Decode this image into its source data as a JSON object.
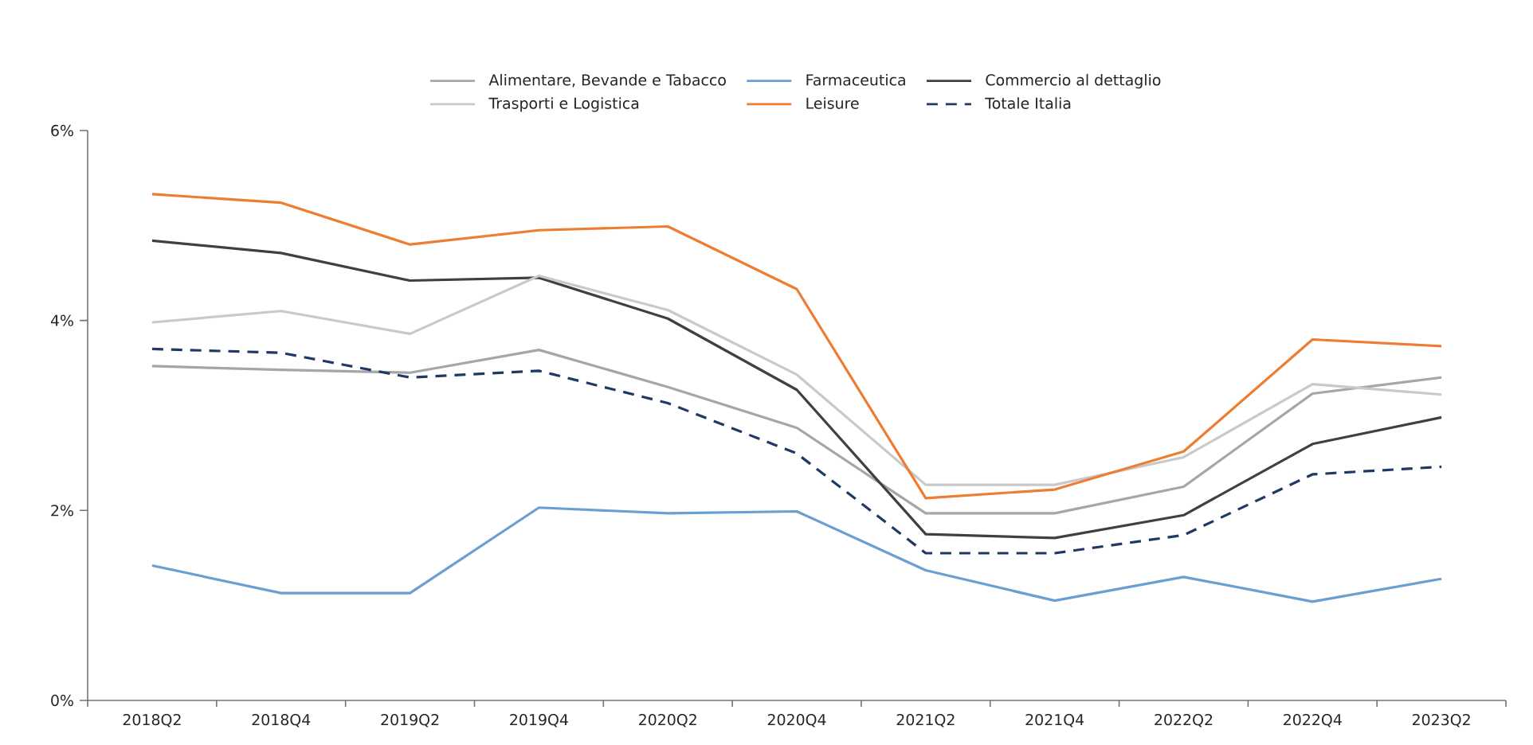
{
  "chart_data": {
    "type": "line",
    "categories": [
      "2018Q2",
      "2018Q4",
      "2019Q2",
      "2019Q4",
      "2020Q2",
      "2020Q4",
      "2021Q2",
      "2021Q4",
      "2022Q2",
      "2022Q4",
      "2023Q2"
    ],
    "series": [
      {
        "name": "Alimentare, Bevande e Tabacco",
        "color": "#a6a6a6",
        "line_style": "solid",
        "values": [
          3.52,
          3.48,
          3.45,
          3.69,
          3.3,
          2.87,
          1.97,
          1.97,
          2.25,
          3.23,
          3.4
        ]
      },
      {
        "name": "Farmaceutica",
        "color": "#6a9fd2",
        "line_style": "solid",
        "values": [
          1.42,
          1.13,
          1.13,
          2.03,
          1.97,
          1.99,
          1.37,
          1.05,
          1.3,
          1.04,
          1.28
        ]
      },
      {
        "name": "Commercio al dettaglio",
        "color": "#404040",
        "line_style": "solid",
        "values": [
          4.84,
          4.71,
          4.42,
          4.45,
          4.02,
          3.27,
          1.75,
          1.71,
          1.95,
          2.7,
          2.98
        ]
      },
      {
        "name": "Trasporti e Logistica",
        "color": "#c9c9c9",
        "line_style": "solid",
        "values": [
          3.98,
          4.1,
          3.86,
          4.47,
          4.11,
          3.43,
          2.27,
          2.27,
          2.56,
          3.33,
          3.22
        ]
      },
      {
        "name": "Leisure",
        "color": "#ed7d31",
        "line_style": "solid",
        "values": [
          5.33,
          5.24,
          4.8,
          4.95,
          4.99,
          4.33,
          2.13,
          2.22,
          2.62,
          3.8,
          3.73
        ]
      },
      {
        "name": "Totale Italia",
        "color": "#1f3864",
        "line_style": "dashed",
        "values": [
          3.7,
          3.66,
          3.4,
          3.47,
          3.13,
          2.6,
          1.55,
          1.55,
          1.74,
          2.38,
          2.46
        ]
      }
    ],
    "ylim": [
      0,
      6
    ],
    "yticks": [
      {
        "value": 0,
        "label": "0%"
      },
      {
        "value": 2,
        "label": "2%"
      },
      {
        "value": 4,
        "label": "4%"
      },
      {
        "value": 6,
        "label": "6%"
      }
    ],
    "grid": false,
    "legend": "top",
    "marker": "none"
  }
}
